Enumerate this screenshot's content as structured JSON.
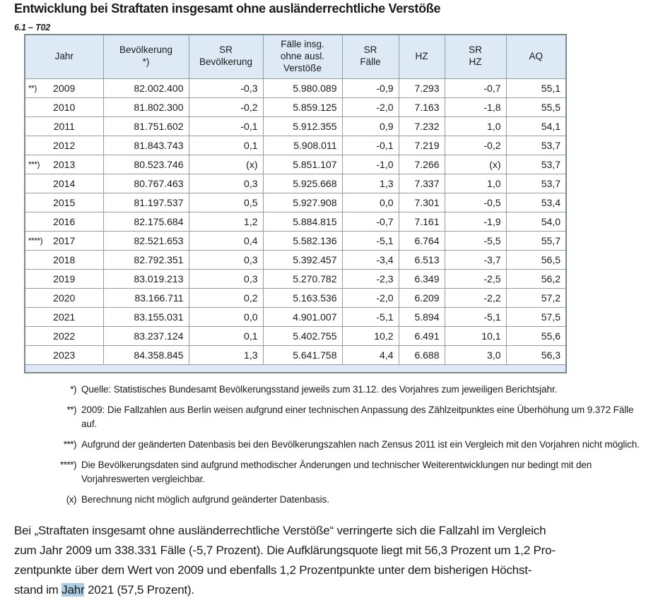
{
  "page": {
    "title": "Entwicklung bei Straftaten insgesamt ohne ausländerrechtliche Verstöße",
    "table_ref": "6.1 – T02"
  },
  "table": {
    "columns": [
      "Jahr",
      "Bevölkerung\n*)",
      "SR\nBevölkerung",
      "Fälle insg.\nohne ausl.\nVerstöße",
      "SR\nFälle",
      "HZ",
      "SR\nHZ",
      "AQ"
    ],
    "rows": [
      {
        "marker": "**)",
        "jahr": "2009",
        "bevoelkerung": "82.002.400",
        "sr_bevoelkerung": "-0,3",
        "faelle": "5.980.089",
        "sr_faelle": "-0,9",
        "hz": "7.293",
        "sr_hz": "-0,7",
        "aq": "55,1"
      },
      {
        "marker": "",
        "jahr": "2010",
        "bevoelkerung": "81.802.300",
        "sr_bevoelkerung": "-0,2",
        "faelle": "5.859.125",
        "sr_faelle": "-2,0",
        "hz": "7.163",
        "sr_hz": "-1,8",
        "aq": "55,5"
      },
      {
        "marker": "",
        "jahr": "2011",
        "bevoelkerung": "81.751.602",
        "sr_bevoelkerung": "-0,1",
        "faelle": "5.912.355",
        "sr_faelle": "0,9",
        "hz": "7.232",
        "sr_hz": "1,0",
        "aq": "54,1"
      },
      {
        "marker": "",
        "jahr": "2012",
        "bevoelkerung": "81.843.743",
        "sr_bevoelkerung": "0,1",
        "faelle": "5.908.011",
        "sr_faelle": "-0,1",
        "hz": "7.219",
        "sr_hz": "-0,2",
        "aq": "53,7"
      },
      {
        "marker": "***)",
        "jahr": "2013",
        "bevoelkerung": "80.523.746",
        "sr_bevoelkerung": "(x)",
        "faelle": "5.851.107",
        "sr_faelle": "-1,0",
        "hz": "7.266",
        "sr_hz": "(x)",
        "aq": "53,7"
      },
      {
        "marker": "",
        "jahr": "2014",
        "bevoelkerung": "80.767.463",
        "sr_bevoelkerung": "0,3",
        "faelle": "5.925.668",
        "sr_faelle": "1,3",
        "hz": "7.337",
        "sr_hz": "1,0",
        "aq": "53,7"
      },
      {
        "marker": "",
        "jahr": "2015",
        "bevoelkerung": "81.197.537",
        "sr_bevoelkerung": "0,5",
        "faelle": "5.927.908",
        "sr_faelle": "0,0",
        "hz": "7.301",
        "sr_hz": "-0,5",
        "aq": "53,4"
      },
      {
        "marker": "",
        "jahr": "2016",
        "bevoelkerung": "82.175.684",
        "sr_bevoelkerung": "1,2",
        "faelle": "5.884.815",
        "sr_faelle": "-0,7",
        "hz": "7.161",
        "sr_hz": "-1,9",
        "aq": "54,0"
      },
      {
        "marker": "****)",
        "jahr": "2017",
        "bevoelkerung": "82.521.653",
        "sr_bevoelkerung": "0,4",
        "faelle": "5.582.136",
        "sr_faelle": "-5,1",
        "hz": "6.764",
        "sr_hz": "-5,5",
        "aq": "55,7"
      },
      {
        "marker": "",
        "jahr": "2018",
        "bevoelkerung": "82.792.351",
        "sr_bevoelkerung": "0,3",
        "faelle": "5.392.457",
        "sr_faelle": "-3,4",
        "hz": "6.513",
        "sr_hz": "-3,7",
        "aq": "56,5"
      },
      {
        "marker": "",
        "jahr": "2019",
        "bevoelkerung": "83.019.213",
        "sr_bevoelkerung": "0,3",
        "faelle": "5.270.782",
        "sr_faelle": "-2,3",
        "hz": "6.349",
        "sr_hz": "-2,5",
        "aq": "56,2"
      },
      {
        "marker": "",
        "jahr": "2020",
        "bevoelkerung": "83.166.711",
        "sr_bevoelkerung": "0,2",
        "faelle": "5.163.536",
        "sr_faelle": "-2,0",
        "hz": "6.209",
        "sr_hz": "-2,2",
        "aq": "57,2"
      },
      {
        "marker": "",
        "jahr": "2021",
        "bevoelkerung": "83.155.031",
        "sr_bevoelkerung": "0,0",
        "faelle": "4.901.007",
        "sr_faelle": "-5,1",
        "hz": "5.894",
        "sr_hz": "-5,1",
        "aq": "57,5"
      },
      {
        "marker": "",
        "jahr": "2022",
        "bevoelkerung": "83.237.124",
        "sr_bevoelkerung": "0,1",
        "faelle": "5.402.755",
        "sr_faelle": "10,2",
        "hz": "6.491",
        "sr_hz": "10,1",
        "aq": "55,6"
      },
      {
        "marker": "",
        "jahr": "2023",
        "bevoelkerung": "84.358.845",
        "sr_bevoelkerung": "1,3",
        "faelle": "5.641.758",
        "sr_faelle": "4,4",
        "hz": "6.688",
        "sr_hz": "3,0",
        "aq": "56,3"
      }
    ]
  },
  "footnotes": [
    {
      "marker": "*)",
      "text": "Quelle: Statistisches Bundesamt Bevölkerungsstand jeweils zum 31.12. des Vorjahres zum jeweiligen Berichtsjahr."
    },
    {
      "marker": "**)",
      "text": "2009: Die Fallzahlen aus Berlin weisen aufgrund einer technischen Anpassung des Zählzeitpunktes eine Überhöhung um 9.372 Fälle auf."
    },
    {
      "marker": "***)",
      "text": "Aufgrund der geänderten Datenbasis bei den Bevölkerungszahlen nach Zensus 2011 ist ein Vergleich mit den Vorjahren nicht möglich."
    },
    {
      "marker": "****)",
      "text": "Die Bevölkerungsdaten sind aufgrund methodischer Änderungen und technischer Weiterentwicklungen nur bedingt mit den Vorjahreswerten vergleichbar."
    },
    {
      "marker": "(x)",
      "text": "Berechnung nicht möglich aufgrund geänderter Datenbasis."
    }
  ],
  "summary": {
    "line1": "Bei „Straftaten insgesamt ohne ausländerrechtliche Verstöße“ verringerte sich die Fallzahl im Vergleich",
    "line2": "zum Jahr 2009 um 338.331 Fälle (-5,7 Prozent). Die Aufklärungsquote liegt mit 56,3 Prozent um 1,2 Pro-",
    "line3": "zentpunkte über dem Wert von 2009 und ebenfalls 1,2 Prozentpunkte unter dem bisherigen Höchst-",
    "line4_pre": "stand im ",
    "line4_highlight": "Jahr",
    "line4_post": " 2021 (57,5 Prozent)."
  },
  "colors": {
    "header_bg": "#ddeaf6",
    "border": "#939e9e",
    "border_outer": "#7e8a8a",
    "highlight": "#abcbe3",
    "text": "#1a1a1a"
  }
}
